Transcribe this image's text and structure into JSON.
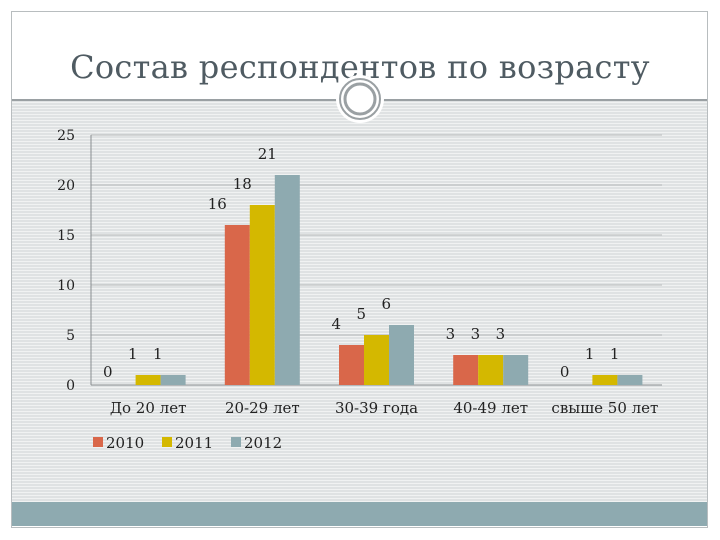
{
  "slide": {
    "title": "Состав респондентов по возрасту"
  },
  "colors": {
    "hatch_bg": "#dfe2e3",
    "accent_bar": "#8eaab0",
    "title_text": "#4f5b62"
  },
  "chart_data": {
    "type": "bar",
    "title": "",
    "xlabel": "",
    "ylabel": "",
    "categories": [
      "До 20 лет",
      "20-29 лет",
      "30-39 года",
      "40-49 лет",
      "свыше 50 лет"
    ],
    "series": [
      {
        "name": "2010",
        "color": "#d9674a",
        "values": [
          0,
          16,
          4,
          3,
          0
        ]
      },
      {
        "name": "2011",
        "color": "#d4b800",
        "values": [
          1,
          18,
          5,
          3,
          1
        ]
      },
      {
        "name": "2012",
        "color": "#8eaab0",
        "values": [
          1,
          21,
          6,
          3,
          1
        ]
      }
    ],
    "ylim": [
      0,
      25
    ],
    "yticks": [
      0,
      5,
      10,
      15,
      20,
      25
    ],
    "grid": true,
    "legend": "bottom-left",
    "data_labels": true
  }
}
